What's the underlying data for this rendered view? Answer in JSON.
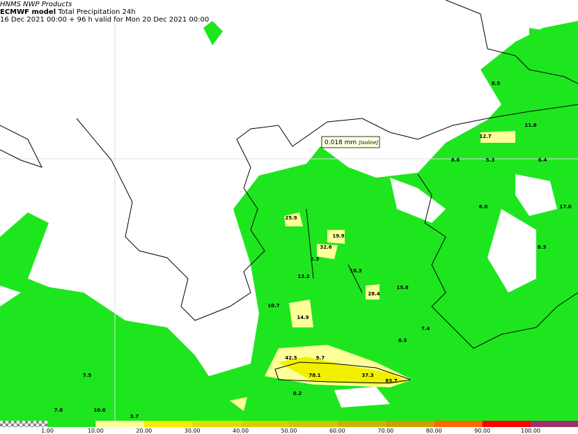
{
  "header": {
    "source": "HNMS NWP Products",
    "model": "ECMWF model",
    "product": "Total Precipitation 24h",
    "validity": "16 Dec 2021 00:00 + 96 h valid for Mon 20 Dec 2021 00:00"
  },
  "tooltip": {
    "value": "0.018 mm",
    "kind": "[Isoline]"
  },
  "station_values": [
    "8.5",
    "11.8",
    "12.7",
    "8.6",
    "5.3",
    "6.4",
    "6.0",
    "17.0",
    "8.3",
    "25.9",
    "19.9",
    "32.6",
    "13.2",
    "2.3",
    "18.3",
    "10.7",
    "14.9",
    "28.4",
    "15.8",
    "7.4",
    "8.5",
    "42.5",
    "9.7",
    "78.1",
    "37.3",
    "83.7",
    "0.2",
    "7.5",
    "7.6",
    "10.6",
    "3.7"
  ],
  "legend": {
    "labels": [
      "1.00",
      "10.00",
      "20.00",
      "30.00",
      "40.00",
      "50.00",
      "60.00",
      "70.00",
      "80.00",
      "90.00",
      "100.00"
    ],
    "colors": [
      "#1ee61e",
      "#ffff99",
      "#f0f000",
      "#dede00",
      "#d2d200",
      "#c8c800",
      "#c8b400",
      "#c8a000",
      "#ff6a00",
      "#ff0000",
      "#a0306a"
    ]
  }
}
